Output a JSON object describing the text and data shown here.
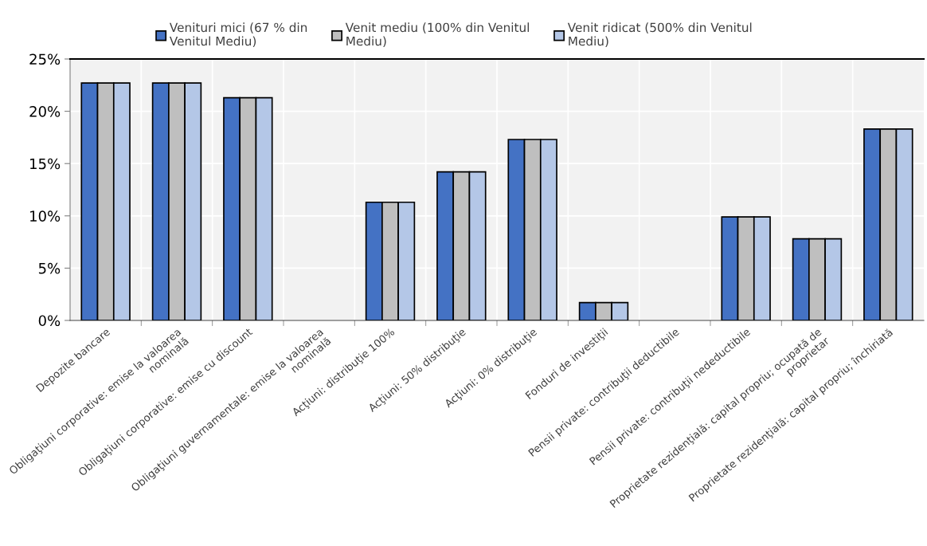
{
  "chart_data": {
    "type": "bar",
    "categories": [
      "Depozite bancare",
      "Obligaţiuni corporative: emise la valoarea\nnominală",
      "Obligaţiuni corporative: emise cu discount",
      "Obligaţiuni guvernamentale: emise la valoarea\nnominală",
      "Acţiuni: distribuţie 100%",
      "Acţiuni: 50% distribuţie",
      "Acţiuni: 0% distribuţie",
      "Fonduri de investiţii",
      "Pensii private: contribuţii deductibile",
      "Pensii private: contribuţii nedeductibile",
      "Proprietate rezidenţială: capital propriu; ocupată de\nproprietar",
      "Proprietate rezidenţială: capital propriu; închiriată"
    ],
    "series": [
      {
        "name": "Venituri mici (67 % din\nVenitul Mediu)",
        "color": "#4472c4",
        "values": [
          22.7,
          22.7,
          21.3,
          null,
          11.3,
          14.2,
          17.3,
          1.7,
          null,
          9.9,
          7.8,
          18.3
        ]
      },
      {
        "name": "Venit mediu (100% din Venitul\nMediu)",
        "color": "#bfbfbf",
        "values": [
          22.7,
          22.7,
          21.3,
          null,
          11.3,
          14.2,
          17.3,
          1.7,
          null,
          9.9,
          7.8,
          18.3
        ]
      },
      {
        "name": "Venit ridicat (500% din Venitul\nMediu)",
        "color": "#b4c7e7",
        "values": [
          22.7,
          22.7,
          21.3,
          null,
          11.3,
          14.2,
          17.3,
          1.7,
          null,
          9.9,
          7.8,
          18.3
        ]
      }
    ],
    "ylim": [
      0,
      25
    ],
    "yticks": [
      {
        "value": 0,
        "label": "0%"
      },
      {
        "value": 5,
        "label": "5%"
      },
      {
        "value": 10,
        "label": "10%"
      },
      {
        "value": 15,
        "label": "15%"
      },
      {
        "value": 20,
        "label": "20%"
      },
      {
        "value": 25,
        "label": "25%"
      }
    ],
    "grid": true,
    "legend": "top"
  }
}
